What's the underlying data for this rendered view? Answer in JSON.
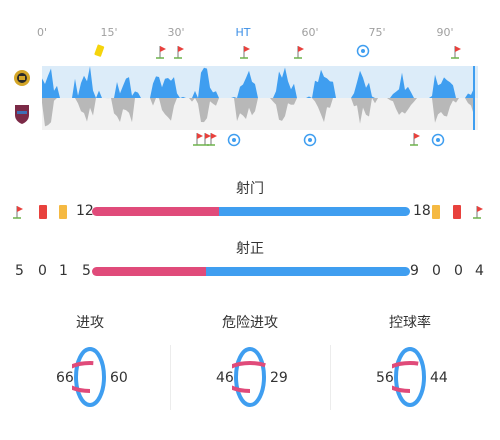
{
  "timeline": {
    "ticks": [
      "0'",
      "15'",
      "30'",
      "HT",
      "60'",
      "75'",
      "90'"
    ],
    "colors": {
      "home": "#3f9ef0",
      "away": "#b8b8b8",
      "home_bg": "#dcecf9",
      "away_bg": "#f2f2f2",
      "accent": "#3a8ee6"
    }
  },
  "home_team": {
    "logo_icon": "home-team-crest-icon"
  },
  "away_team": {
    "logo_icon": "away-team-crest-icon"
  },
  "stats": {
    "shots": {
      "label": "射门",
      "home": "12",
      "away": "18",
      "home_value": 12,
      "away_value": 18
    },
    "shots_on_target": {
      "label": "射正",
      "home": "5",
      "away": "9",
      "home_value": 5,
      "away_value": 9
    }
  },
  "events_summary": {
    "home": {
      "corners": "5",
      "red_cards": "0",
      "yellow_cards": "1"
    },
    "away": {
      "yellow_cards": "0",
      "red_cards": "0",
      "corners": "4"
    }
  },
  "circles": [
    {
      "label": "进攻",
      "home": "66",
      "away": "60",
      "home_value": 66,
      "away_value": 60
    },
    {
      "label": "危险进攻",
      "home": "46",
      "away": "29",
      "home_value": 46,
      "away_value": 29
    },
    {
      "label": "控球率",
      "home": "56",
      "away": "44",
      "home_value": 56,
      "away_value": 44
    }
  ],
  "colors": {
    "home": "#e04b7a",
    "away": "#3f9ef0",
    "yellow": "#f5b942",
    "red": "#e8413d"
  }
}
